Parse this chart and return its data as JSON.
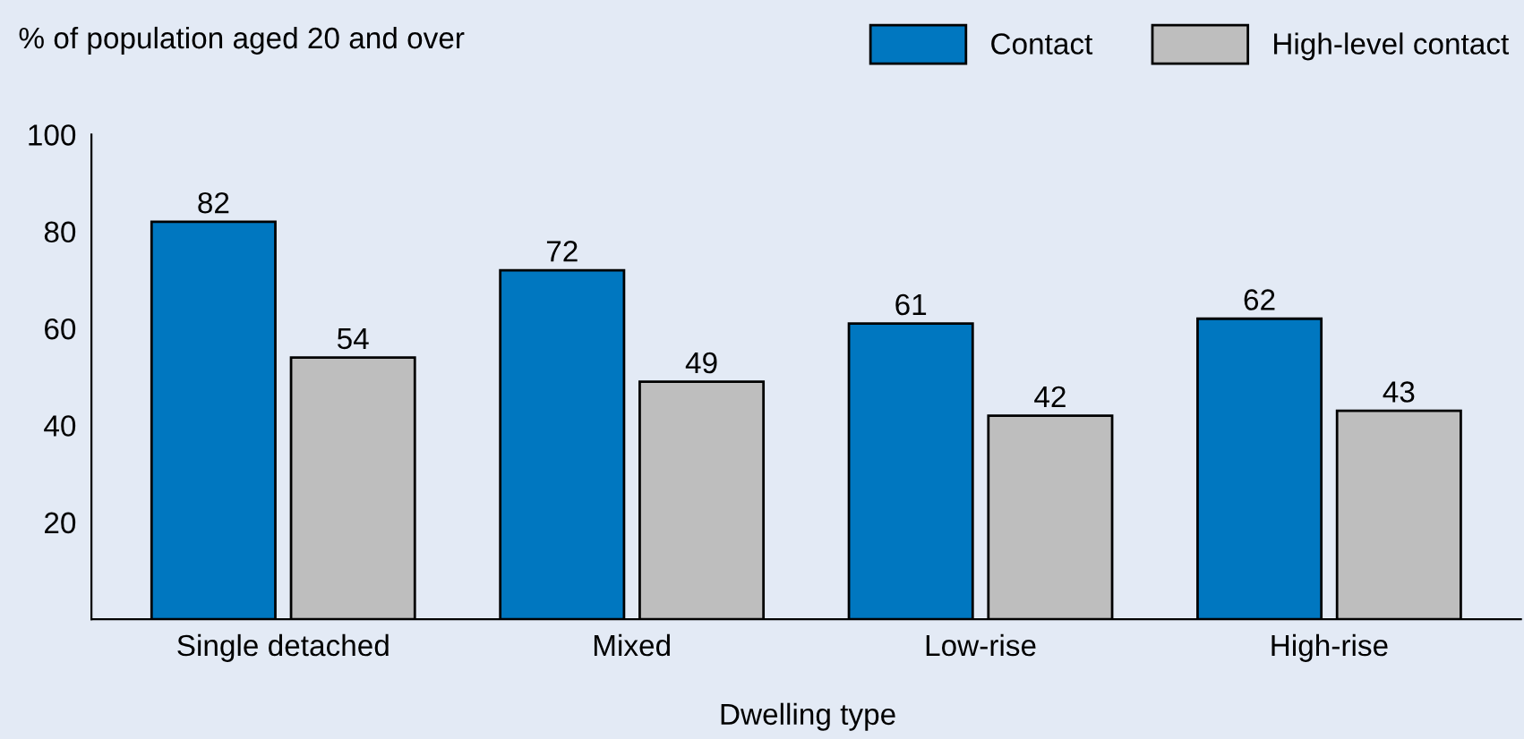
{
  "chart_data": {
    "type": "bar",
    "ylabel": "% of population aged 20 and over",
    "xlabel": "Dwelling type",
    "categories": [
      "Single detached",
      "Mixed",
      "Low-rise",
      "High-rise"
    ],
    "series": [
      {
        "name": "Contact",
        "color": "#0077c0",
        "values": [
          82,
          72,
          61,
          62
        ]
      },
      {
        "name": "High-level contact",
        "color": "#bebebe",
        "values": [
          54,
          49,
          42,
          43
        ]
      }
    ],
    "ylim": [
      0,
      100
    ],
    "yticks": [
      20,
      40,
      60,
      80,
      100
    ],
    "grid": false,
    "legend": "top right",
    "data_labels": true
  }
}
